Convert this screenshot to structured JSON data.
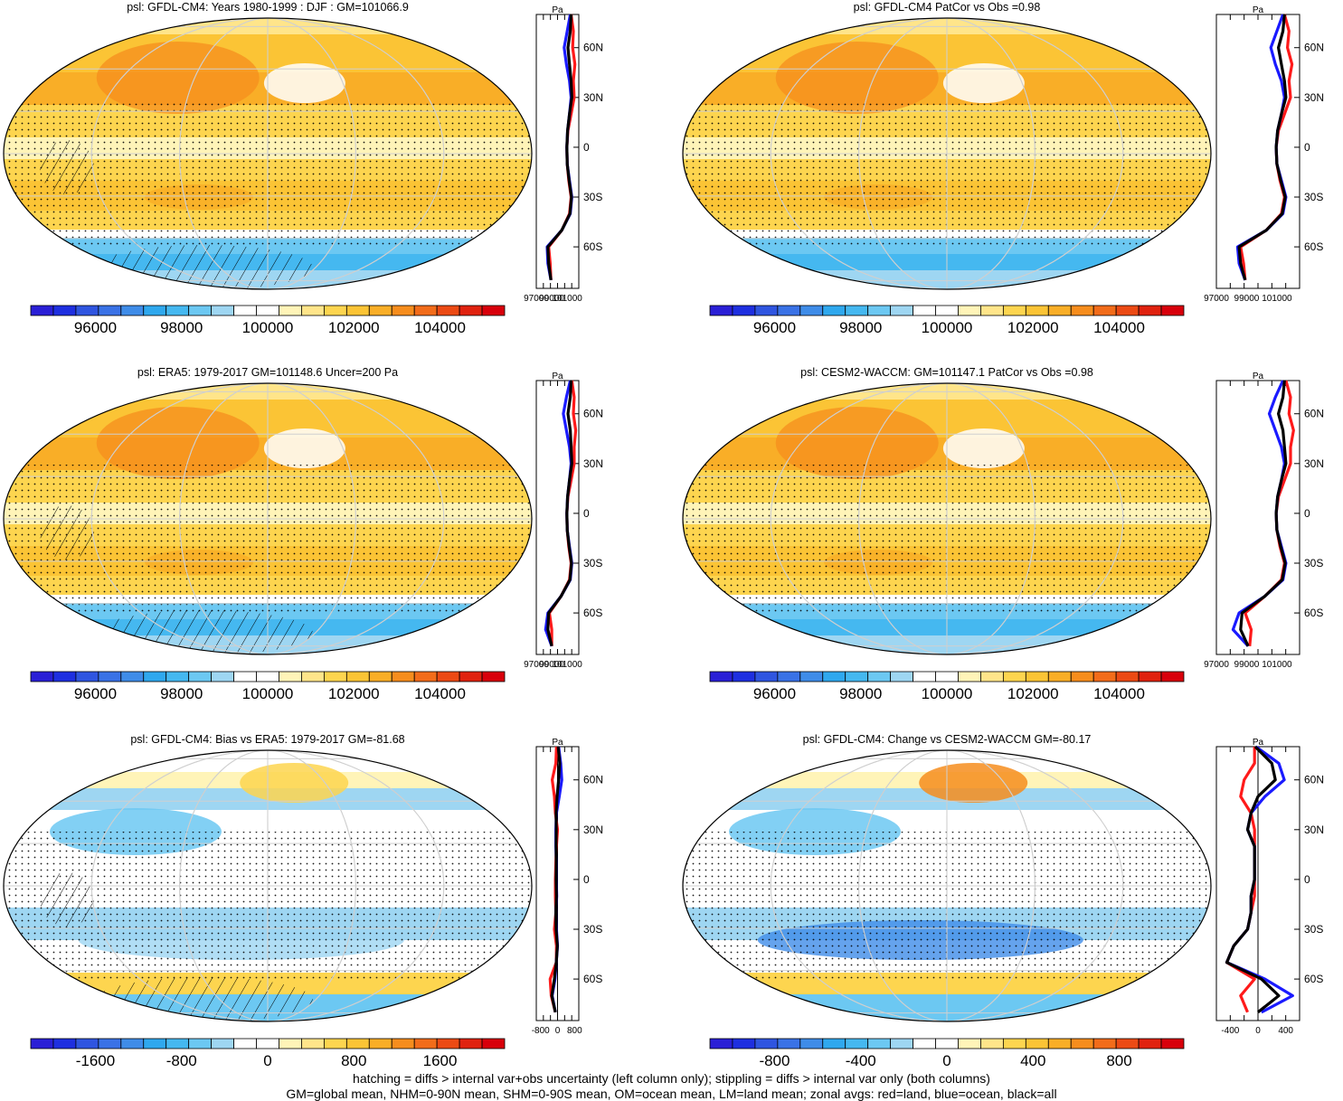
{
  "footer": {
    "line1": "hatching = diffs > internal var+obs uncertainty (left column only); stippling = diffs > internal var only (both columns)",
    "line2": "GM=global mean, NHM=0-90N mean, SHM=0-90S mean, OM=ocean mean, LM=land mean; zonal avgs: red=land, blue=ocean, black=all"
  },
  "chart_data": [
    {
      "type": "heatmap",
      "title": "psl: GFDL-CM4: Years 1980-1999 : DJF : GM=101066.9",
      "colorbar": {
        "ticks": [
          "96000",
          "98000",
          "100000",
          "102000",
          "104000"
        ],
        "range": [
          94500,
          105500
        ]
      },
      "zonal": {
        "title": "Pa",
        "yticks": [
          "60N",
          "30N",
          "0",
          "30S",
          "60S"
        ],
        "xticks": [
          "97000",
          "99000",
          "101000"
        ],
        "xlim": [
          97000,
          102500
        ],
        "lat": [
          80,
          70,
          60,
          50,
          40,
          30,
          20,
          10,
          0,
          -10,
          -20,
          -30,
          -40,
          -50,
          -60,
          -70,
          -80
        ],
        "series": [
          {
            "name": "red",
            "values": [
              101500,
              101800,
              101700,
              102000,
              101800,
              101900,
              101500,
              101100,
              100950,
              101000,
              101200,
              101500,
              101300,
              100300,
              98600,
              98800,
              98900
            ]
          },
          {
            "name": "blue",
            "values": [
              101400,
              101000,
              100600,
              100900,
              101300,
              101500,
              101300,
              101050,
              100950,
              101000,
              101300,
              101600,
              101400,
              100300,
              98400,
              98500,
              98900
            ]
          },
          {
            "name": "black",
            "values": [
              101500,
              101400,
              101100,
              101300,
              101500,
              101600,
              101300,
              101050,
              100950,
              101000,
              101250,
              101550,
              101350,
              100300,
              98500,
              98600,
              98900
            ]
          }
        ]
      }
    },
    {
      "type": "heatmap",
      "title": "psl: GFDL-CM4 PatCor vs Obs =0.98",
      "colorbar": {
        "ticks": [
          "96000",
          "98000",
          "100000",
          "102000",
          "104000"
        ],
        "range": [
          94500,
          105500
        ]
      },
      "zonal": {
        "title": "Pa",
        "yticks": [
          "60N",
          "30N",
          "0",
          "30S",
          "60S"
        ],
        "xticks": [
          "97000",
          "99000",
          "101000"
        ],
        "xlim": [
          97000,
          102500
        ],
        "lat": [
          80,
          70,
          60,
          50,
          40,
          30,
          20,
          10,
          0,
          -10,
          -20,
          -30,
          -40,
          -50,
          -60,
          -70,
          -80
        ],
        "series": [
          {
            "name": "red",
            "values": [
              101500,
              101800,
              101700,
              102000,
              101800,
              101900,
              101500,
              101100,
              100950,
              101000,
              101200,
              101500,
              101300,
              100300,
              98600,
              98800,
              98900
            ]
          },
          {
            "name": "blue",
            "values": [
              101400,
              101000,
              100600,
              100900,
              101300,
              101500,
              101300,
              101050,
              100950,
              101000,
              101300,
              101600,
              101400,
              100300,
              98400,
              98500,
              98900
            ]
          },
          {
            "name": "black",
            "values": [
              101500,
              101400,
              101100,
              101300,
              101500,
              101600,
              101300,
              101050,
              100950,
              101000,
              101250,
              101550,
              101350,
              100300,
              98500,
              98600,
              98900
            ]
          }
        ]
      }
    },
    {
      "type": "heatmap",
      "title": "psl: ERA5: 1979-2017 GM=101148.6 Uncer=200 Pa",
      "colorbar": {
        "ticks": [
          "96000",
          "98000",
          "100000",
          "102000",
          "104000"
        ],
        "range": [
          94500,
          105500
        ]
      },
      "zonal": {
        "title": "Pa",
        "yticks": [
          "60N",
          "30N",
          "0",
          "30S",
          "60S"
        ],
        "xticks": [
          "97000",
          "99000",
          "101000"
        ],
        "xlim": [
          97000,
          102500
        ],
        "lat": [
          80,
          70,
          60,
          50,
          40,
          30,
          20,
          10,
          0,
          -10,
          -20,
          -30,
          -40,
          -50,
          -60,
          -70,
          -80
        ],
        "series": [
          {
            "name": "red",
            "values": [
              101600,
              101900,
              101800,
              102100,
              101900,
              101900,
              101500,
              101100,
              100950,
              101000,
              101200,
              101500,
              101300,
              100200,
              98700,
              99000,
              99000
            ]
          },
          {
            "name": "blue",
            "values": [
              101400,
              100900,
              100500,
              100900,
              101300,
              101500,
              101300,
              101050,
              100950,
              101000,
              101300,
              101600,
              101400,
              100200,
              98500,
              98200,
              99000
            ]
          },
          {
            "name": "black",
            "values": [
              101500,
              101400,
              101100,
              101400,
              101500,
              101600,
              101300,
              101050,
              100950,
              101000,
              101250,
              101550,
              101350,
              100200,
              98600,
              98500,
              99000
            ]
          }
        ]
      }
    },
    {
      "type": "heatmap",
      "title": "psl: CESM2-WACCM: GM=101147.1 PatCor vs Obs =0.98",
      "colorbar": {
        "ticks": [
          "96000",
          "98000",
          "100000",
          "102000",
          "104000"
        ],
        "range": [
          94500,
          105500
        ]
      },
      "zonal": {
        "title": "Pa",
        "yticks": [
          "60N",
          "30N",
          "0",
          "30S",
          "60S"
        ],
        "xticks": [
          "97000",
          "99000",
          "101000"
        ],
        "xlim": [
          97000,
          102500
        ],
        "lat": [
          80,
          70,
          60,
          50,
          40,
          30,
          20,
          10,
          0,
          -10,
          -20,
          -30,
          -40,
          -50,
          -60,
          -70,
          -80
        ],
        "series": [
          {
            "name": "red",
            "values": [
              101600,
              101900,
              101800,
              102100,
              101900,
              101900,
              101500,
              101100,
              100950,
              101000,
              101200,
              101500,
              101300,
              100200,
              98900,
              99300,
              99200
            ]
          },
          {
            "name": "blue",
            "values": [
              101400,
              100900,
              100500,
              100900,
              101300,
              101500,
              101300,
              101050,
              100950,
              101000,
              101300,
              101600,
              101400,
              100200,
              98500,
              98100,
              99100
            ]
          },
          {
            "name": "black",
            "values": [
              101500,
              101400,
              101100,
              101400,
              101500,
              101600,
              101300,
              101050,
              100950,
              101000,
              101250,
              101550,
              101350,
              100200,
              98700,
              98600,
              99100
            ]
          }
        ]
      }
    },
    {
      "type": "heatmap",
      "title": "psl: GFDL-CM4: Bias vs ERA5: 1979-2017 GM=-81.68",
      "colorbar": {
        "ticks": [
          "-1600",
          "-800",
          "0",
          "800",
          "1600"
        ],
        "range": [
          -2200,
          2200
        ]
      },
      "zonal": {
        "title": "Pa",
        "yticks": [
          "60N",
          "30N",
          "0",
          "30S",
          "60S"
        ],
        "xticks": [
          "-800",
          "0",
          "800"
        ],
        "xlim": [
          -1000,
          1000
        ],
        "lat": [
          80,
          70,
          60,
          50,
          40,
          30,
          20,
          10,
          0,
          -10,
          -20,
          -30,
          -40,
          -50,
          -60,
          -70,
          -80
        ],
        "series": [
          {
            "name": "red",
            "values": [
              -50,
              -80,
              -250,
              -150,
              -100,
              0,
              -50,
              -80,
              -100,
              -100,
              -80,
              -150,
              -50,
              -60,
              -350,
              -300,
              -100
            ]
          },
          {
            "name": "blue",
            "values": [
              50,
              150,
              200,
              80,
              -50,
              -80,
              -80,
              -50,
              -60,
              -40,
              -80,
              -50,
              0,
              -60,
              -120,
              -250,
              -100
            ]
          },
          {
            "name": "black",
            "values": [
              30,
              100,
              50,
              -20,
              -70,
              -60,
              -70,
              -60,
              -70,
              -50,
              -80,
              -70,
              -10,
              -60,
              -150,
              -270,
              -100
            ]
          }
        ]
      }
    },
    {
      "type": "heatmap",
      "title": "psl: GFDL-CM4: Change vs CESM2-WACCM GM=-80.17",
      "colorbar": {
        "ticks": [
          "-800",
          "-400",
          "0",
          "400",
          "800"
        ],
        "range": [
          -1100,
          1100
        ]
      },
      "zonal": {
        "title": "Pa",
        "yticks": [
          "60N",
          "30N",
          "0",
          "30S",
          "60S"
        ],
        "xticks": [
          "-400",
          "0",
          "400"
        ],
        "xlim": [
          -600,
          600
        ],
        "lat": [
          80,
          70,
          60,
          50,
          40,
          30,
          20,
          10,
          0,
          -10,
          -20,
          -30,
          -40,
          -50,
          -60,
          -70,
          -80
        ],
        "series": [
          {
            "name": "red",
            "values": [
              -50,
              -50,
              -200,
              -250,
              -100,
              -50,
              -50,
              -50,
              -50,
              -50,
              -100,
              -150,
              -350,
              -450,
              -50,
              -250,
              -150
            ]
          },
          {
            "name": "blue",
            "values": [
              -30,
              300,
              380,
              100,
              -100,
              -150,
              -50,
              -50,
              -50,
              -100,
              -100,
              -150,
              -350,
              -450,
              100,
              500,
              50
            ]
          },
          {
            "name": "black",
            "values": [
              -40,
              200,
              250,
              0,
              -100,
              -150,
              -50,
              -50,
              -50,
              -100,
              -100,
              -150,
              -350,
              -450,
              50,
              300,
              0
            ]
          }
        ]
      }
    }
  ]
}
